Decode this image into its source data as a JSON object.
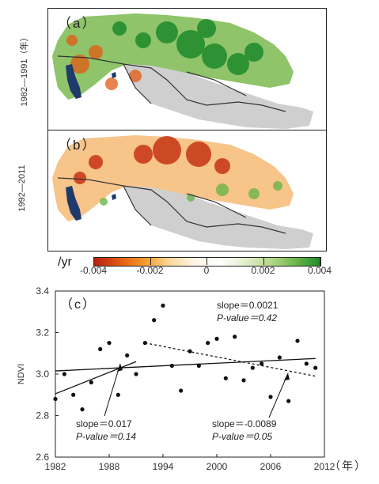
{
  "map_panels": [
    {
      "label": "（a）",
      "period": "1982—1991（年）"
    },
    {
      "label": "（b）",
      "period": "1992—2011"
    }
  ],
  "colorbar": {
    "unit": "/yr",
    "ticks": [
      "-0.004",
      "-0.002",
      "0",
      "0.002",
      "0.004"
    ],
    "colors": [
      "#b5200f",
      "#e25a12",
      "#f39a2b",
      "#fbd79a",
      "#fff6e6",
      "#ffffff",
      "#e3efcc",
      "#b7d98b",
      "#6db64a",
      "#1e8a2c"
    ]
  },
  "colors": {
    "water": "#1f3b6b",
    "no_data": "#cfcfcf",
    "border": "#333333"
  },
  "chart_data": {
    "type": "scatter",
    "panel_label": "（c）",
    "ylabel": "NDVI",
    "x_unit": "（年）",
    "xlim": [
      1982,
      2012
    ],
    "ylim": [
      2.6,
      3.4
    ],
    "xticks": [
      "1982",
      "1988",
      "1994",
      "2000",
      "2006",
      "2012"
    ],
    "yticks": [
      "2.6",
      "2.8",
      "3.0",
      "3.2",
      "3.4"
    ],
    "points": [
      [
        1982,
        2.88
      ],
      [
        1983,
        3.0
      ],
      [
        1984,
        2.9
      ],
      [
        1985,
        2.83
      ],
      [
        1986,
        2.96
      ],
      [
        1987,
        3.12
      ],
      [
        1988,
        3.15
      ],
      [
        1989,
        2.9
      ],
      [
        1990,
        3.09
      ],
      [
        1991,
        3.0
      ],
      [
        1992,
        3.15
      ],
      [
        1993,
        3.26
      ],
      [
        1994,
        3.33
      ],
      [
        1995,
        3.04
      ],
      [
        1996,
        2.92
      ],
      [
        1997,
        3.11
      ],
      [
        1998,
        3.04
      ],
      [
        1999,
        3.15
      ],
      [
        2000,
        3.17
      ],
      [
        2001,
        2.98
      ],
      [
        2002,
        3.18
      ],
      [
        2003,
        2.97
      ],
      [
        2004,
        3.03
      ],
      [
        2005,
        3.05
      ],
      [
        2006,
        2.89
      ],
      [
        2007,
        3.08
      ],
      [
        2008,
        2.87
      ],
      [
        2009,
        3.16
      ],
      [
        2010,
        3.05
      ],
      [
        2011,
        3.03
      ]
    ],
    "trend_lines": [
      {
        "style": "solid",
        "x": [
          1982,
          2011
        ],
        "y": [
          3.015,
          3.075
        ]
      },
      {
        "style": "solid",
        "x": [
          1982,
          1991
        ],
        "y": [
          2.905,
          3.06
        ]
      },
      {
        "style": "dashed",
        "x": [
          1992,
          2011
        ],
        "y": [
          3.15,
          2.99
        ]
      }
    ],
    "annotations": [
      {
        "slope": "slope＝0.0021",
        "pvalue": "P-value＝0.42"
      },
      {
        "slope": "slope＝0.017",
        "pvalue": "P-value＝0.14"
      },
      {
        "slope": "slope＝-0.0089",
        "pvalue": "P-value＝0.05"
      }
    ]
  }
}
